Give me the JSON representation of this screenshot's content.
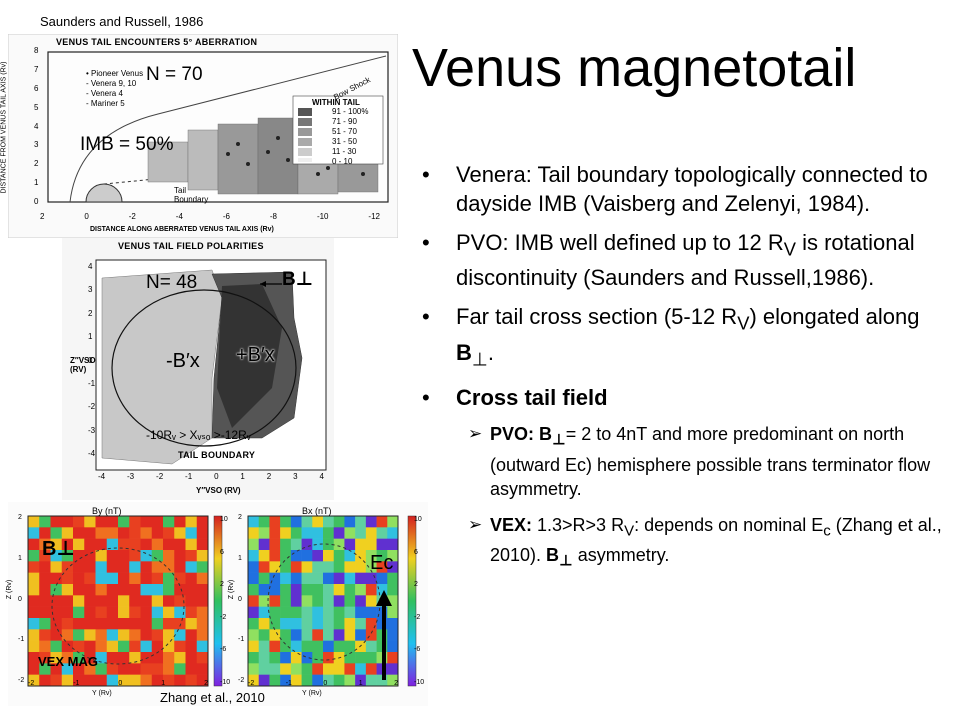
{
  "title": "Venus magnetotail",
  "citations": {
    "top": "Saunders and Russell, 1986",
    "bottom": "Zhang et al., 2010"
  },
  "figure1": {
    "heading": "VENUS TAIL ENCOUNTERS    5° ABERRATION",
    "n_label": "N = 70",
    "imb_label": "IMB = 50%",
    "legend": [
      "• Pioneer Venus",
      "- Venera 9, 10",
      "- Venera 4",
      "- Mariner 5"
    ],
    "bow_shock": "Bow Shock",
    "tail_boundary": "Tail Boundary",
    "within_tail_title": "WITHIN TAIL",
    "within_tail": [
      "91 - 100%",
      "71 - 90",
      "51 - 70",
      "31 - 50",
      "11 - 30",
      "0 - 10"
    ],
    "ylabel": "DISTANCE FROM VENUS TAIL AXIS (Rv)",
    "xlabel": "DISTANCE ALONG ABERRATED VENUS TAIL AXIS (Rv)",
    "xticks": [
      "2",
      "0",
      "-2",
      "-4",
      "-6",
      "-8",
      "-10",
      "-12"
    ],
    "yticks": [
      "8",
      "7",
      "6",
      "5",
      "4",
      "3",
      "2",
      "1",
      "0"
    ]
  },
  "figure2": {
    "heading": "VENUS TAIL FIELD POLARITIES",
    "n_label": "N= 48",
    "b_perp": "B⊥",
    "minus_bx": "-B′x",
    "plus_bx": "+B′x",
    "range": "-10Rᵥ > Xᵥₛₒ >-12Rᵥ",
    "boundary": "TAIL BOUNDARY",
    "ylabel": "Z″VSO (RV)",
    "xlabel": "Y″VSO (RV)",
    "yticks": [
      "4",
      "3",
      "2",
      "1",
      "0",
      "-1",
      "-2",
      "-3",
      "-4"
    ],
    "xticks": [
      "-4",
      "-3",
      "-2",
      "-1",
      "0",
      "1",
      "2",
      "3",
      "4"
    ]
  },
  "figure3": {
    "left_title": "By (nT)",
    "right_title": "Bx (nT)",
    "b_perp": "B⊥",
    "ec": "Ec",
    "vex_mag": "VEX MAG",
    "ylabel": "Z (Rv)",
    "xlabel": "Y (Rv)",
    "colorbar_ticks": [
      "10",
      "8",
      "6",
      "4",
      "2",
      "0",
      "-2",
      "-4",
      "-6",
      "-8",
      "-10"
    ],
    "yticks": [
      "2",
      "1",
      "0",
      "-1",
      "-2"
    ],
    "xticks": [
      "-2",
      "-1",
      "0",
      "1",
      "2"
    ]
  },
  "bullets": [
    {
      "text": "Venera: Tail boundary topologically connected to dayside IMB (Vaisberg and Zelenyi, 1984)."
    },
    {
      "html": "PVO: IMB well defined up to 12 R<sub>V</sub> is rotational discontinuity (Saunders and Russell,1986)."
    },
    {
      "html": "Far tail cross section (5-12 R<sub>V</sub>) elongated along <b>B</b><sub>⊥</sub>."
    },
    {
      "bold": "Cross tail field"
    }
  ],
  "subbullets": [
    {
      "html": "<b>PVO: B<sub>⊥</sub></b>= 2 to 4nT and more predominant on north (outward Ec) hemisphere possible trans terminator flow asymmetry."
    },
    {
      "html": "<b>VEX:</b> 1.3>R>3 R<sub>V</sub>: depends on nominal E<sub>c</sub> (Zhang et al., 2010). <b>B<sub>⊥</sub></b> asymmetry."
    }
  ],
  "bullet_symbol": "•",
  "subbullet_symbol": "➢"
}
